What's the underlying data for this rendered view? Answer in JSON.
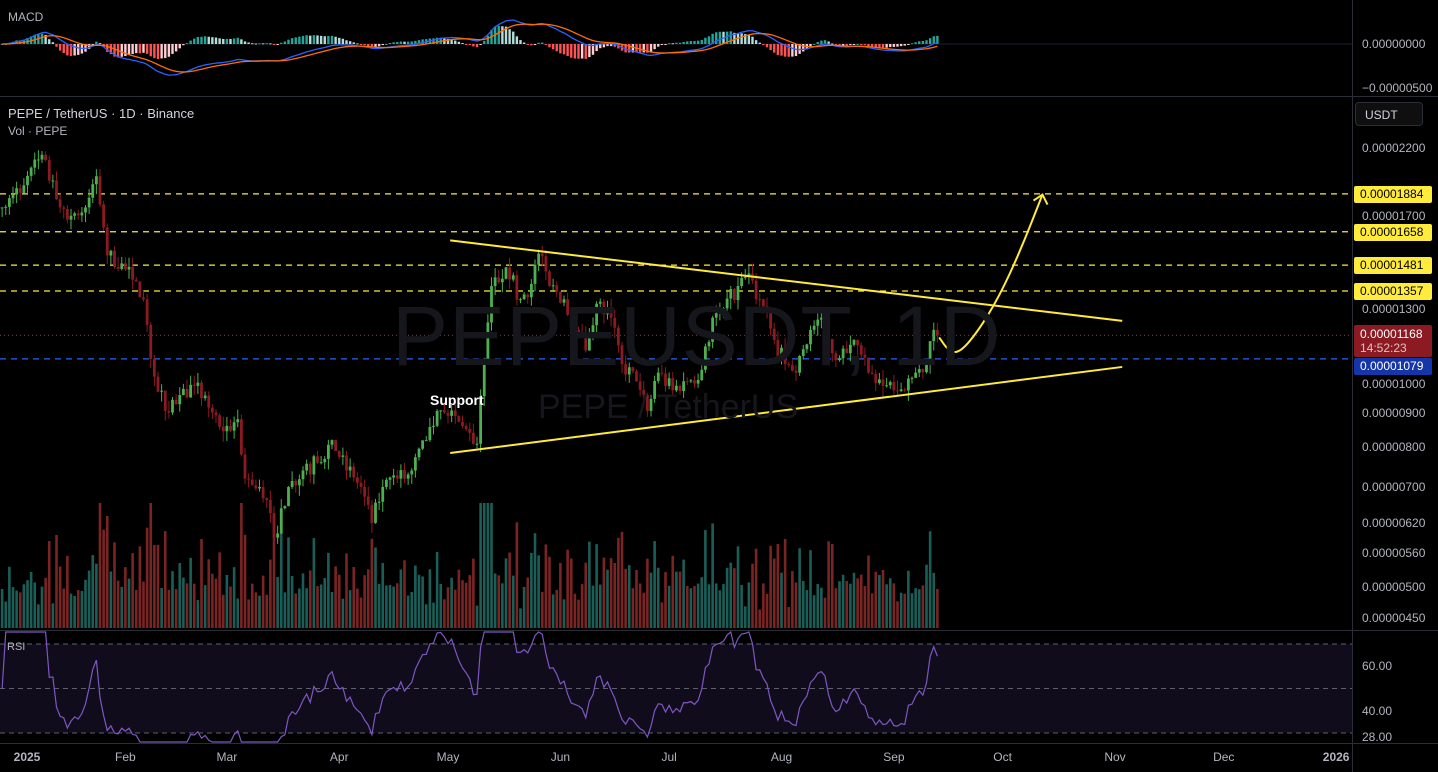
{
  "header": {
    "symbol_line": "PEPE / TetherUS · 1D · Binance",
    "volume_line": "Vol · PEPE",
    "macd_label": "MACD",
    "rsi_label": "RSI",
    "currency_button": "USDT",
    "watermark_symbol": "PEPEUSDT, 1D",
    "watermark_name": "PEPE / TetherUS"
  },
  "annotations": {
    "support_label": "Support"
  },
  "price_axis": {
    "ticks": [
      "0.00002200",
      "0.00001700",
      "0.00001300",
      "0.00001000",
      "0.00000900",
      "0.00000800",
      "0.00000700",
      "0.00000620",
      "0.00000560",
      "0.00000500",
      "0.00000450"
    ],
    "tick_values": [
      2200,
      1700,
      1300,
      1000,
      900,
      800,
      700,
      620,
      560,
      500,
      450
    ],
    "levels": [
      {
        "label": "0.00001884",
        "value": 1884,
        "color": "#ffeb3b"
      },
      {
        "label": "0.00001658",
        "value": 1658,
        "color": "#ffeb3b"
      },
      {
        "label": "0.00001481",
        "value": 1481,
        "color": "#ffeb3b"
      },
      {
        "label": "0.00001357",
        "value": 1357,
        "color": "#ffeb3b"
      }
    ],
    "current_price": {
      "label": "0.00001168",
      "value": 1168,
      "countdown": "14:52:23",
      "color": "#8b1a22"
    },
    "blue_level": {
      "label": "0.00001079",
      "value": 1079,
      "color": "#1536a8"
    }
  },
  "macd_axis": {
    "ticks": [
      "0.00000000",
      "−0.00000500"
    ],
    "tick_values": [
      0,
      -500
    ]
  },
  "rsi_axis": {
    "ticks": [
      "60.00",
      "40.00",
      "28.00"
    ],
    "tick_values": [
      60,
      40,
      28
    ]
  },
  "time_axis": [
    {
      "label": "2025",
      "day": 0
    },
    {
      "label": "Feb",
      "day": 31
    },
    {
      "label": "Mar",
      "day": 59
    },
    {
      "label": "Apr",
      "day": 90
    },
    {
      "label": "May",
      "day": 120
    },
    {
      "label": "Jun",
      "day": 151
    },
    {
      "label": "Jul",
      "day": 181
    },
    {
      "label": "Aug",
      "day": 212
    },
    {
      "label": "Sep",
      "day": 243
    },
    {
      "label": "Oct",
      "day": 273
    },
    {
      "label": "Nov",
      "day": 304
    },
    {
      "label": "Dec",
      "day": 334
    },
    {
      "label": "2026",
      "day": 365
    }
  ],
  "chart_data": {
    "type": "candlestick",
    "title": "PEPE / TetherUS · 1D · Binance",
    "price_unit": "1e-8 USDT",
    "y_scale": "log",
    "ylim": [
      430,
      2300
    ],
    "x_unit": "days since 2025-01-01",
    "xlim": [
      -3,
      365
    ],
    "close_anchors": [
      [
        -3,
        1800
      ],
      [
        0,
        1880
      ],
      [
        3,
        1940
      ],
      [
        8,
        2150
      ],
      [
        12,
        1850
      ],
      [
        16,
        1750
      ],
      [
        20,
        1800
      ],
      [
        23,
        2000
      ],
      [
        26,
        1530
      ],
      [
        30,
        1490
      ],
      [
        33,
        1410
      ],
      [
        36,
        1320
      ],
      [
        38,
        1079
      ],
      [
        42,
        905
      ],
      [
        46,
        955
      ],
      [
        50,
        985
      ],
      [
        54,
        915
      ],
      [
        58,
        845
      ],
      [
        62,
        880
      ],
      [
        64,
        720
      ],
      [
        68,
        700
      ],
      [
        70,
        670
      ],
      [
        72,
        590
      ],
      [
        76,
        700
      ],
      [
        80,
        740
      ],
      [
        84,
        760
      ],
      [
        88,
        820
      ],
      [
        92,
        740
      ],
      [
        96,
        700
      ],
      [
        99,
        620
      ],
      [
        102,
        700
      ],
      [
        106,
        720
      ],
      [
        110,
        740
      ],
      [
        114,
        820
      ],
      [
        117,
        905
      ],
      [
        120,
        890
      ],
      [
        124,
        860
      ],
      [
        128,
        810
      ],
      [
        130,
        1079
      ],
      [
        132,
        1380
      ],
      [
        136,
        1470
      ],
      [
        140,
        1320
      ],
      [
        143,
        1390
      ],
      [
        145,
        1540
      ],
      [
        148,
        1380
      ],
      [
        152,
        1320
      ],
      [
        155,
        1190
      ],
      [
        158,
        1110
      ],
      [
        161,
        1300
      ],
      [
        165,
        1240
      ],
      [
        168,
        1060
      ],
      [
        172,
        1000
      ],
      [
        175,
        905
      ],
      [
        178,
        1030
      ],
      [
        182,
        970
      ],
      [
        186,
        1000
      ],
      [
        190,
        1040
      ],
      [
        193,
        1240
      ],
      [
        196,
        1280
      ],
      [
        200,
        1380
      ],
      [
        203,
        1440
      ],
      [
        206,
        1320
      ],
      [
        210,
        1150
      ],
      [
        213,
        1060
      ],
      [
        216,
        1030
      ],
      [
        220,
        1190
      ],
      [
        223,
        1240
      ],
      [
        226,
        1100
      ],
      [
        230,
        1100
      ],
      [
        233,
        1130
      ],
      [
        236,
        1030
      ],
      [
        240,
        985
      ],
      [
        243,
        970
      ],
      [
        246,
        970
      ],
      [
        249,
        1030
      ],
      [
        252,
        1060
      ],
      [
        254,
        1190
      ],
      [
        255,
        1168
      ]
    ],
    "trendlines": [
      {
        "name": "upper-resistance",
        "points": [
          [
            120.6,
            1610
          ],
          [
            306,
            1227
          ]
        ],
        "color": "#ffeb3b"
      },
      {
        "name": "lower-support",
        "points": [
          [
            120.6,
            785
          ],
          [
            306,
            1050
          ]
        ],
        "color": "#ffeb3b"
      }
    ],
    "projection_arrow": {
      "points": [
        [
          255.5,
          1160
        ],
        [
          258,
          1110
        ],
        [
          261,
          1100
        ],
        [
          266,
          1180
        ],
        [
          272,
          1330
        ],
        [
          278,
          1560
        ],
        [
          284,
          1880
        ]
      ],
      "color": "#ffeb3b"
    },
    "indicators": {
      "macd": [
        12,
        26,
        9
      ],
      "rsi": {
        "period": 14,
        "bands": [
          70,
          50,
          30
        ]
      }
    },
    "colors": {
      "up": "#4caf50",
      "down": "#8b1a22",
      "vol_up": "#1b5e58",
      "vol_down": "#7a2424",
      "macd": "#2962ff",
      "signal": "#ff6d00",
      "rsi": "#7e57c2"
    }
  }
}
